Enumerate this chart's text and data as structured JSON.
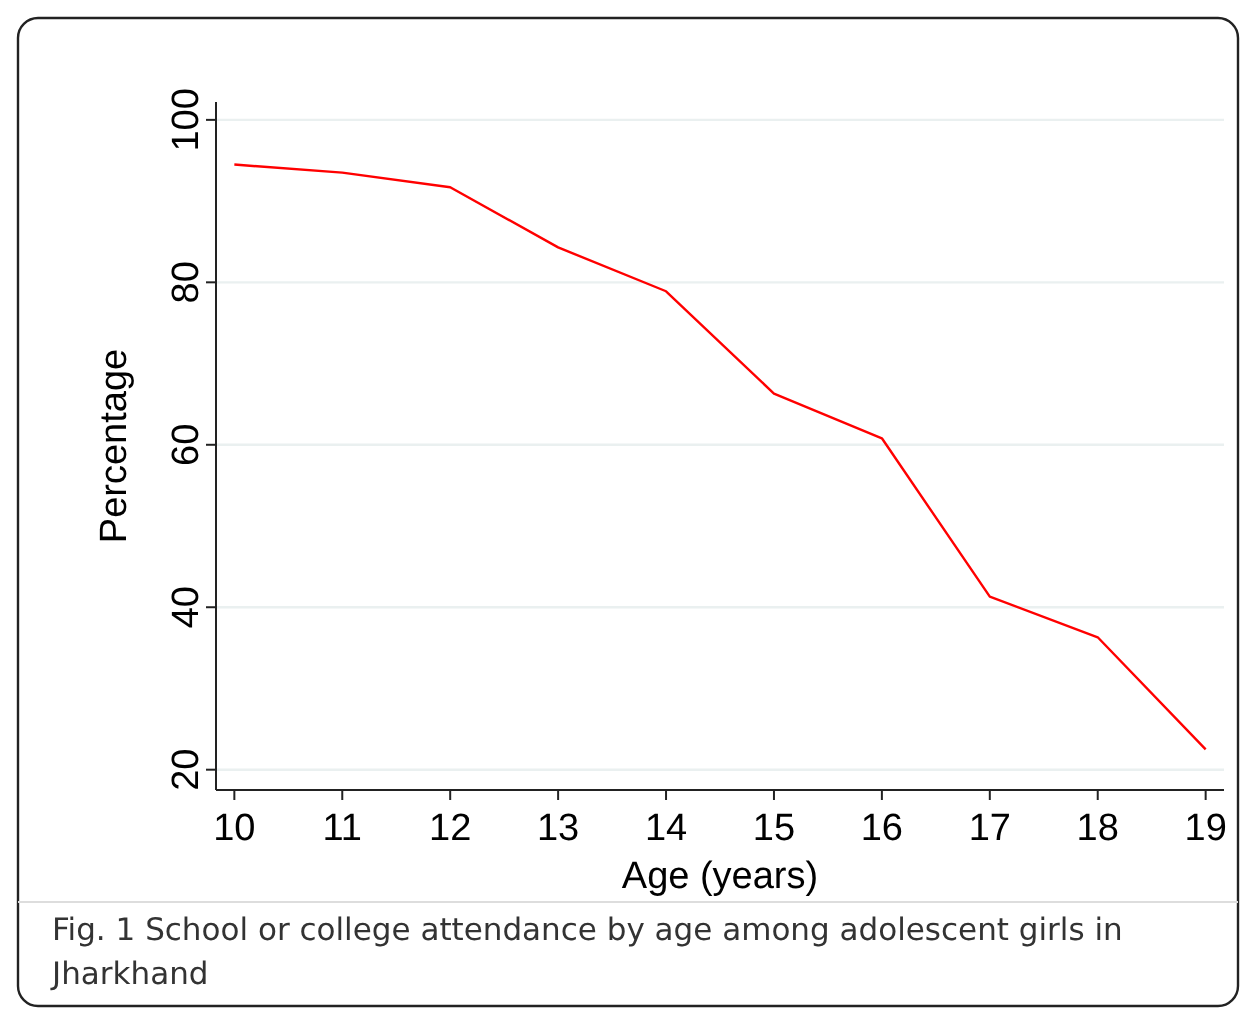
{
  "chart_data": {
    "type": "line",
    "xlabel": "Age (years)",
    "ylabel": "Percentage",
    "x": [
      10,
      11,
      12,
      13,
      14,
      15,
      16,
      17,
      18,
      19
    ],
    "series": [
      {
        "color": "#ff0000",
        "values": [
          94.5,
          93.5,
          91.7,
          84.3,
          78.9,
          66.3,
          60.8,
          41.3,
          36.3,
          22.5
        ]
      }
    ],
    "xlim": [
      9.83,
      19.17
    ],
    "xticks": [
      10,
      11,
      12,
      13,
      14,
      15,
      16,
      17,
      18,
      19
    ],
    "ylim": [
      17.5,
      102.2
    ],
    "yticks": [
      20,
      40,
      60,
      80,
      100
    ],
    "grid": "y",
    "marker": "none",
    "line_style": "solid",
    "annotations": [
      "Fig. 1 School or college attendance by age among adolescent girls in Jharkhand"
    ]
  }
}
